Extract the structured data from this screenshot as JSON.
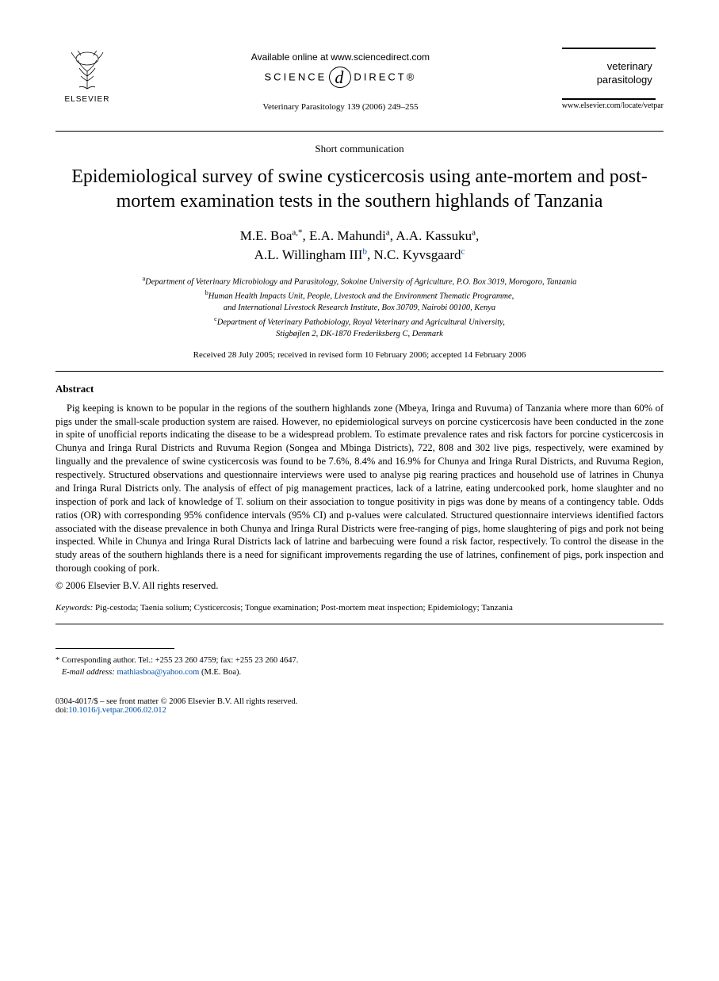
{
  "header": {
    "publisher": "ELSEVIER",
    "available_online": "Available online at www.sciencedirect.com",
    "science_direct_left": "SCIENCE",
    "science_direct_right": "DIRECT®",
    "citation": "Veterinary Parasitology 139 (2006) 249–255",
    "journal_name_line1": "veterinary",
    "journal_name_line2": "parasitology",
    "journal_url": "www.elsevier.com/locate/vetpar"
  },
  "article": {
    "type": "Short communication",
    "title": "Epidemiological survey of swine cysticercosis using ante-mortem and post-mortem examination tests in the southern highlands of Tanzania",
    "authors_line1_html": "M.E. Boa<sup>a,</sup><sup class='star'>*</sup>, E.A. Mahundi<sup>a</sup>, A.A. Kassuku<sup>a</sup>,",
    "authors_line2_html": "A.L. Willingham III<sup class='aff-sup-link'>b</sup>, N.C. Kyvsgaard<sup class='aff-sup-link'>c</sup>",
    "affiliations": {
      "a": "Department of Veterinary Microbiology and Parasitology, Sokoine University of Agriculture, P.O. Box 3019, Morogoro, Tanzania",
      "b_line1": "Human Health Impacts Unit, People, Livestock and the Environment Thematic Programme,",
      "b_line2": "and International Livestock Research Institute, Box 30709, Nairobi 00100, Kenya",
      "c_line1": "Department of Veterinary Pathobiology, Royal Veterinary and Agricultural University,",
      "c_line2": "Stigbøjlen 2, DK-1870 Frederiksberg C, Denmark"
    },
    "dates": "Received 28 July 2005; received in revised form 10 February 2006; accepted 14 February 2006"
  },
  "abstract": {
    "heading": "Abstract",
    "body": "Pig keeping is known to be popular in the regions of the southern highlands zone (Mbeya, Iringa and Ruvuma) of Tanzania where more than 60% of pigs under the small-scale production system are raised. However, no epidemiological surveys on porcine cysticercosis have been conducted in the zone in spite of unofficial reports indicating the disease to be a widespread problem. To estimate prevalence rates and risk factors for porcine cysticercosis in Chunya and Iringa Rural Districts and Ruvuma Region (Songea and Mbinga Districts), 722, 808 and 302 live pigs, respectively, were examined by lingually and the prevalence of swine cysticercosis was found to be 7.6%, 8.4% and 16.9% for Chunya and Iringa Rural Districts, and Ruvuma Region, respectively. Structured observations and questionnaire interviews were used to analyse pig rearing practices and household use of latrines in Chunya and Iringa Rural Districts only. The analysis of effect of pig management practices, lack of a latrine, eating undercooked pork, home slaughter and no inspection of pork and lack of knowledge of T. solium on their association to tongue positivity in pigs was done by means of a contingency table. Odds ratios (OR) with corresponding 95% confidence intervals (95% CI) and p-values were calculated. Structured questionnaire interviews identified factors associated with the disease prevalence in both Chunya and Iringa Rural Districts were free-ranging of pigs, home slaughtering of pigs and pork not being inspected. While in Chunya and Iringa Rural Districts lack of latrine and barbecuing were found a risk factor, respectively. To control the disease in the study areas of the southern highlands there is a need for significant improvements regarding the use of latrines, confinement of pigs, pork inspection and thorough cooking of pork.",
    "copyright": "© 2006 Elsevier B.V. All rights reserved."
  },
  "keywords": {
    "label": "Keywords:",
    "text": "Pig-cestoda; Taenia solium; Cysticercosis; Tongue examination; Post-mortem meat inspection; Epidemiology; Tanzania"
  },
  "footnote": {
    "corresponding": "* Corresponding author. Tel.: +255 23 260 4759; fax: +255 23 260 4647.",
    "email_label": "E-mail address:",
    "email": "mathiasboa@yahoo.com",
    "email_suffix": "(M.E. Boa)."
  },
  "footer": {
    "issn_line": "0304-4017/$ – see front matter © 2006 Elsevier B.V. All rights reserved.",
    "doi_prefix": "doi:",
    "doi": "10.1016/j.vetpar.2006.02.012"
  }
}
